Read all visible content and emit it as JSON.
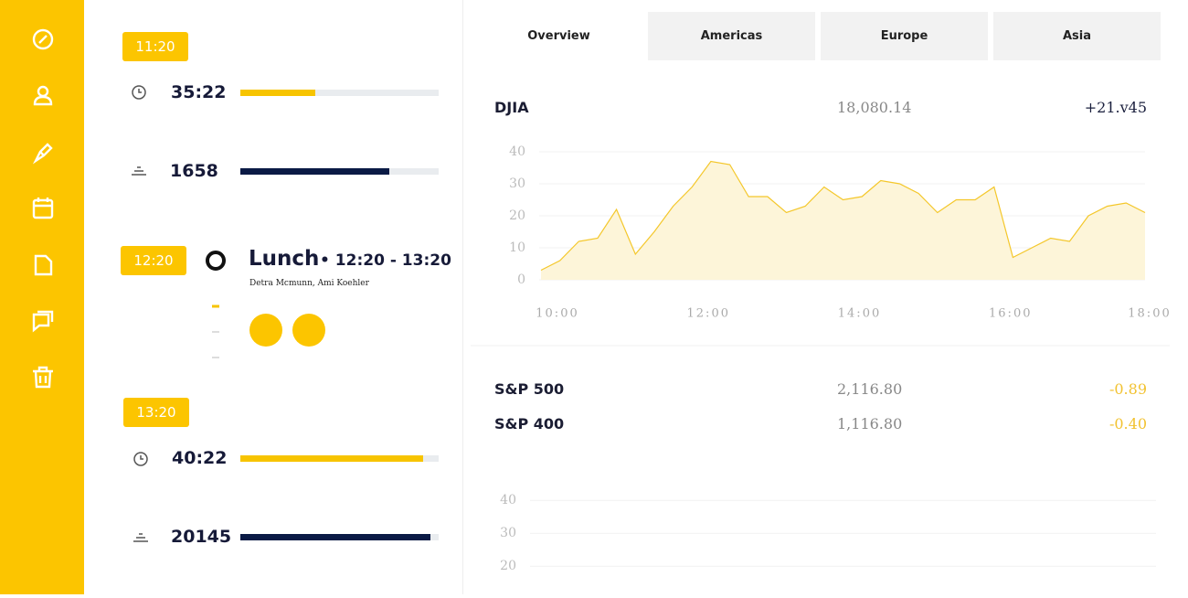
{
  "timeline": [
    {
      "time": "11:20",
      "stats": [
        {
          "value": "35:22",
          "progress": 38,
          "color": "#f7c400"
        },
        {
          "value": "1658",
          "progress": 75,
          "color": "#0a1a45"
        }
      ]
    },
    {
      "time": "12:20",
      "event": {
        "title": "Lunch",
        "time": "12:20 - 13:20",
        "attendees": "Detra Mcmunn, Ami Koehler"
      }
    },
    {
      "time": "13:20",
      "stats": [
        {
          "value": "40:22",
          "progress": 92,
          "color": "#f7c400"
        },
        {
          "value": "20145",
          "progress": 96,
          "color": "#0a1a45"
        }
      ]
    }
  ],
  "tabs": [
    "Overview",
    "Americas",
    "Europe",
    "Asia"
  ],
  "active_tab": 0,
  "markets": [
    {
      "name": "DJIA",
      "value": "18,080.14",
      "change": "+21.v45",
      "color": "#1a1f3d"
    },
    {
      "name": "S&P 500",
      "value": "2,116.80",
      "change": "-0.89",
      "color": "#f2c230"
    },
    {
      "name": "S&P 400",
      "value": "1,116.80",
      "change": "-0.40",
      "color": "#f2c230"
    }
  ],
  "chart_data": [
    {
      "type": "line",
      "color": "#f4c72a",
      "fill": "#fdf5d9",
      "grid": true,
      "x": [
        10,
        10.25,
        10.5,
        10.75,
        11,
        11.25,
        11.5,
        11.75,
        12,
        12.25,
        12.5,
        12.75,
        13,
        13.25,
        13.5,
        13.75,
        14,
        14.25,
        14.5,
        14.75,
        15,
        15.25,
        15.5,
        15.75,
        16,
        16.25,
        16.5,
        16.75,
        17,
        17.25,
        17.5,
        17.75,
        18
      ],
      "values": [
        3,
        6,
        12,
        13,
        22,
        8,
        15,
        23,
        29,
        37,
        36,
        26,
        26,
        21,
        23,
        29,
        25,
        26,
        31,
        30,
        27,
        21,
        25,
        25,
        29,
        7,
        10,
        13,
        12,
        20,
        23,
        24,
        21
      ],
      "xlim": [
        10,
        18
      ],
      "xticks": [
        {
          "value": 10,
          "label": "10:00"
        },
        {
          "value": 12,
          "label": "12:00"
        },
        {
          "value": 14,
          "label": "14:00"
        },
        {
          "value": 16,
          "label": "16:00"
        },
        {
          "value": 18,
          "label": "18:00"
        }
      ],
      "ylim": [
        0,
        42
      ],
      "yticks": [
        0,
        10,
        20,
        30,
        40
      ]
    },
    {
      "type": "line",
      "grid": true,
      "ylim": [
        12,
        42
      ],
      "yticks": [
        20,
        30,
        40
      ]
    }
  ]
}
